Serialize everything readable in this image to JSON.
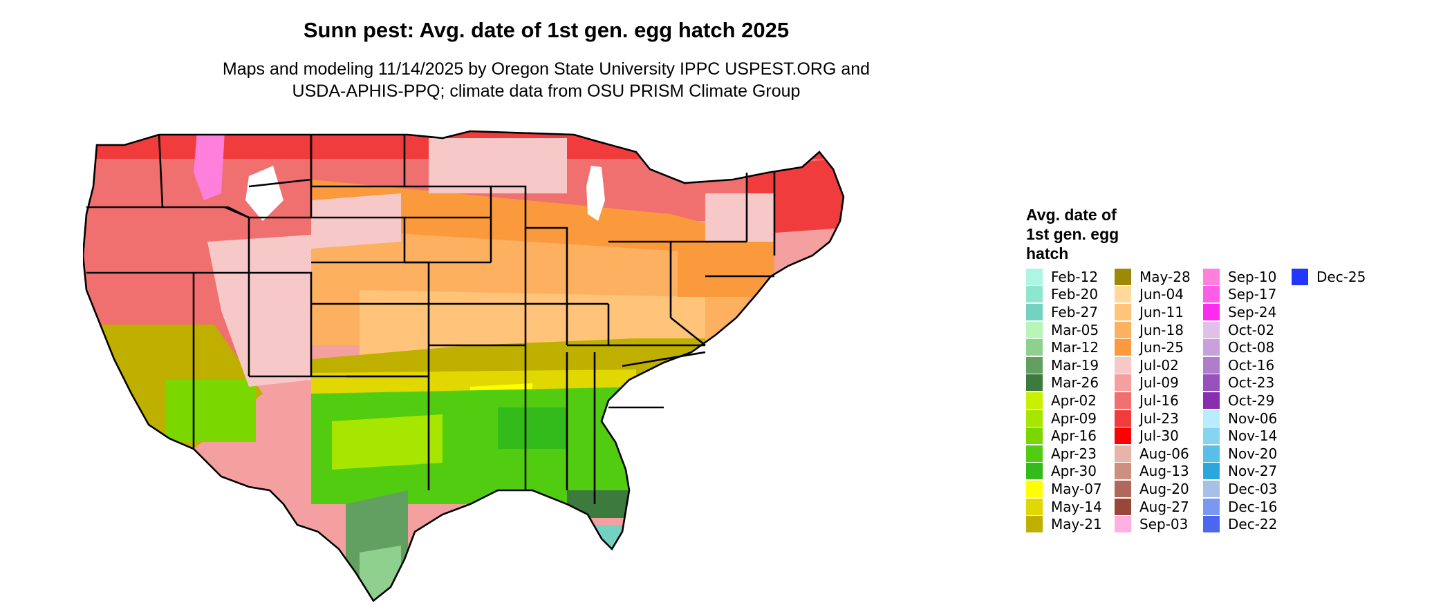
{
  "header": {
    "title": "Sunn pest: Avg. date of 1st gen. egg hatch 2025",
    "subtitle_line1": "Maps and modeling 11/14/2025 by Oregon State University IPPC USPEST.ORG and",
    "subtitle_line2": "USDA-APHIS-PPQ; climate data from OSU PRISM Climate Group"
  },
  "legend": {
    "title_line1": "Avg. date of",
    "title_line2": "1st gen. egg",
    "title_line3": "hatch",
    "columns": [
      [
        {
          "label": "Feb-12",
          "color": "#aef5e3"
        },
        {
          "label": "Feb-20",
          "color": "#8ee6d0"
        },
        {
          "label": "Feb-27",
          "color": "#74d2c3"
        },
        {
          "label": "Mar-05",
          "color": "#b8f5b8"
        },
        {
          "label": "Mar-12",
          "color": "#8fd08f"
        },
        {
          "label": "Mar-19",
          "color": "#62a062"
        },
        {
          "label": "Mar-26",
          "color": "#3d7a3d"
        },
        {
          "label": "Apr-02",
          "color": "#c8f000"
        },
        {
          "label": "Apr-09",
          "color": "#a6e600"
        },
        {
          "label": "Apr-16",
          "color": "#7ad800"
        },
        {
          "label": "Apr-23",
          "color": "#52cc10"
        },
        {
          "label": "Apr-30",
          "color": "#32bb1a"
        },
        {
          "label": "May-07",
          "color": "#ffff00"
        },
        {
          "label": "May-14",
          "color": "#e0d800"
        },
        {
          "label": "May-21",
          "color": "#bfb000"
        }
      ],
      [
        {
          "label": "May-28",
          "color": "#9c8a06"
        },
        {
          "label": "Jun-04",
          "color": "#ffd999"
        },
        {
          "label": "Jun-11",
          "color": "#ffc37a"
        },
        {
          "label": "Jun-18",
          "color": "#fdb060"
        },
        {
          "label": "Jun-25",
          "color": "#fb9a3c"
        },
        {
          "label": "Jul-02",
          "color": "#f7c8c8"
        },
        {
          "label": "Jul-09",
          "color": "#f5a0a0"
        },
        {
          "label": "Jul-16",
          "color": "#f07070"
        },
        {
          "label": "Jul-23",
          "color": "#f03c3c"
        },
        {
          "label": "Jul-30",
          "color": "#ff0000"
        },
        {
          "label": "Aug-06",
          "color": "#e6b4a8"
        },
        {
          "label": "Aug-13",
          "color": "#cc8f80"
        },
        {
          "label": "Aug-20",
          "color": "#b0685a"
        },
        {
          "label": "Aug-27",
          "color": "#984838"
        },
        {
          "label": "Sep-03",
          "color": "#ffb0e0"
        }
      ],
      [
        {
          "label": "Sep-10",
          "color": "#ff80dc"
        },
        {
          "label": "Sep-17",
          "color": "#ff5ce8"
        },
        {
          "label": "Sep-24",
          "color": "#ff2af0"
        },
        {
          "label": "Oct-02",
          "color": "#e0c0e8"
        },
        {
          "label": "Oct-08",
          "color": "#caa0dc"
        },
        {
          "label": "Oct-16",
          "color": "#b07ccc"
        },
        {
          "label": "Oct-23",
          "color": "#9850bc"
        },
        {
          "label": "Oct-29",
          "color": "#8a2eb0"
        },
        {
          "label": "Nov-06",
          "color": "#b8ecff"
        },
        {
          "label": "Nov-14",
          "color": "#86d4f2"
        },
        {
          "label": "Nov-20",
          "color": "#58c0e8"
        },
        {
          "label": "Nov-27",
          "color": "#2aa8dc"
        },
        {
          "label": "Dec-03",
          "color": "#a8c0e8"
        },
        {
          "label": "Dec-16",
          "color": "#7a98f0"
        },
        {
          "label": "Dec-22",
          "color": "#4c66f0"
        }
      ],
      [
        {
          "label": "Dec-25",
          "color": "#2236ff"
        }
      ]
    ]
  }
}
